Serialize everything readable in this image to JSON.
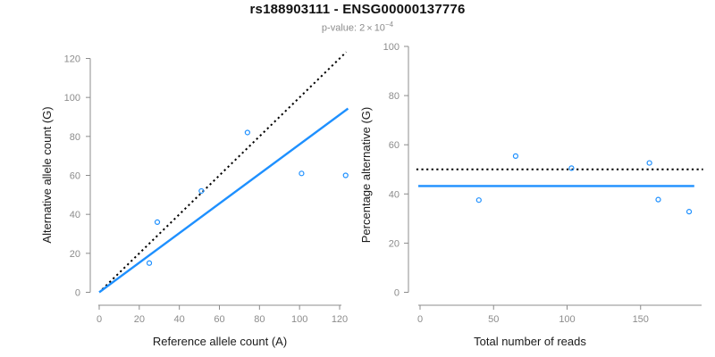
{
  "header": {
    "title": "rs188903111 - ENSG00000137776",
    "subtitle": {
      "prefix": "p-value: ",
      "mantissa": "2",
      "times": "×",
      "base": "10",
      "exponent": "−4"
    }
  },
  "colors": {
    "accent_blue": "#1E90FF",
    "reference_black": "#000000",
    "axis_gray": "#8C8C8C",
    "text_black": "#1A1A1A",
    "background": "#FFFFFF"
  },
  "chart_data": [
    {
      "name": "allele-counts-scatter",
      "type": "scatter",
      "xlabel": "Reference allele count (A)",
      "ylabel": "Alternative allele count (G)",
      "xlim": [
        0,
        124
      ],
      "ylim": [
        0,
        124
      ],
      "xticks": [
        0,
        20,
        40,
        60,
        80,
        100,
        120
      ],
      "yticks": [
        0,
        20,
        40,
        60,
        80,
        100,
        120
      ],
      "grid": false,
      "legend": "none",
      "points": [
        [
          25,
          15
        ],
        [
          29,
          36
        ],
        [
          51,
          52
        ],
        [
          74,
          82
        ],
        [
          101,
          61
        ],
        [
          123,
          60
        ]
      ],
      "lines": [
        {
          "name": "identity-line",
          "style": "dotted",
          "color": "#000000",
          "x1": 1.5,
          "y1": 1.5,
          "x2": 123.3,
          "y2": 123.3
        },
        {
          "name": "regression-line",
          "style": "solid",
          "color": "#1E90FF",
          "x1": 0,
          "y1": 0,
          "x2": 124.2,
          "y2": 94.3
        }
      ]
    },
    {
      "name": "percentage-scatter",
      "type": "scatter",
      "xlabel": "Total number of reads",
      "ylabel": "Percentage alternative (G)",
      "xlim": [
        0,
        193
      ],
      "ylim": [
        0,
        100
      ],
      "xticks": [
        0,
        50,
        100,
        150
      ],
      "yticks": [
        0,
        20,
        40,
        60,
        80,
        100
      ],
      "grid": false,
      "legend": "none",
      "points": [
        [
          40,
          37.5
        ],
        [
          65,
          55.4
        ],
        [
          103,
          50.5
        ],
        [
          156,
          52.6
        ],
        [
          162,
          37.7
        ],
        [
          183,
          32.8
        ]
      ],
      "lines": [
        {
          "name": "expected-percentage-line",
          "style": "dotted",
          "color": "#000000",
          "x1": -2.5,
          "y1": 50,
          "x2": 192.5,
          "y2": 50
        },
        {
          "name": "mean-percentage-line",
          "style": "solid",
          "color": "#1E90FF",
          "x1": -1.2,
          "y1": 43.2,
          "x2": 186.5,
          "y2": 43.2
        }
      ]
    }
  ]
}
